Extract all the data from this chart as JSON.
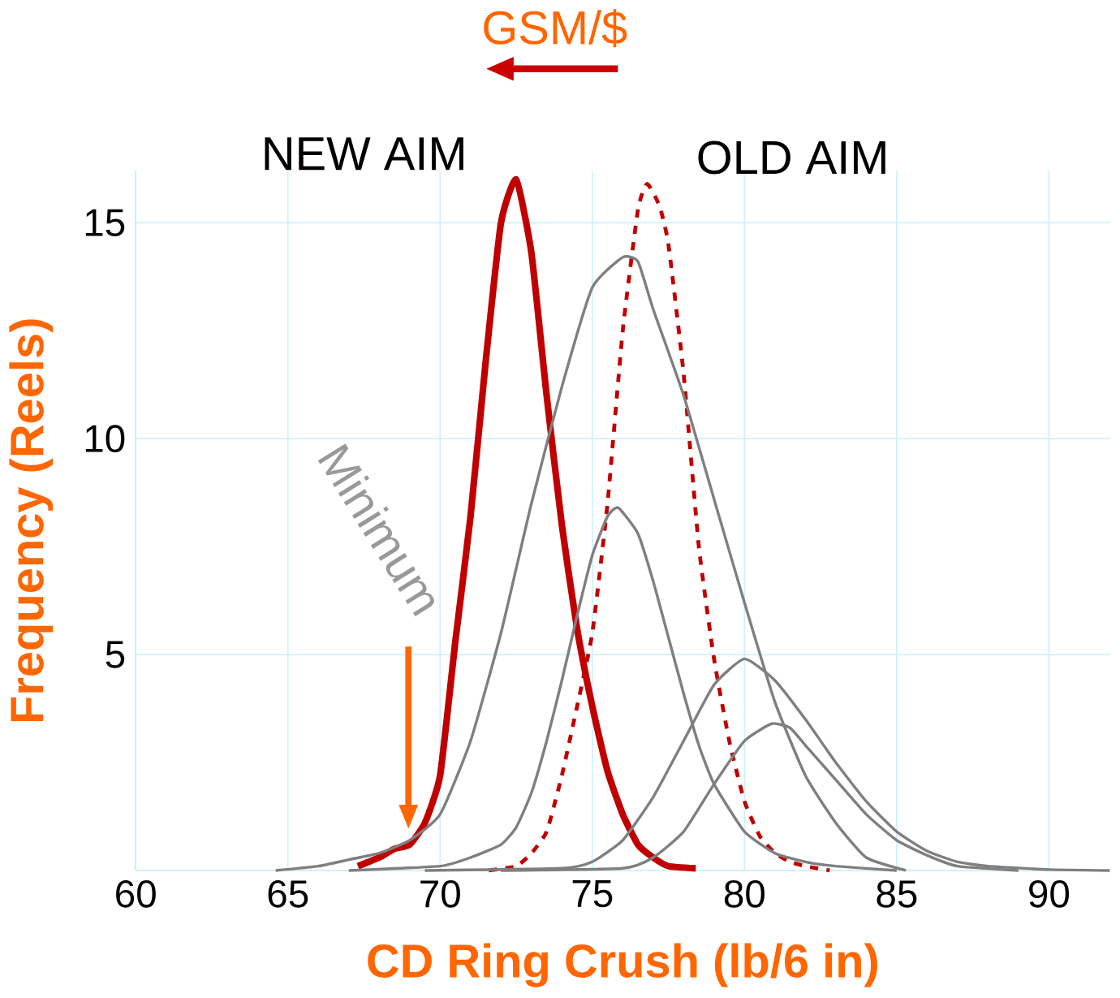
{
  "chart_data": {
    "type": "line",
    "xlabel": "CD Ring Crush (lb/6 in)",
    "ylabel": "Frequency (Reels)",
    "xlim": [
      60,
      92
    ],
    "ylim": [
      0,
      16.2
    ],
    "xticks": [
      60,
      65,
      70,
      75,
      80,
      85,
      90
    ],
    "yticks": [
      5,
      10,
      15
    ],
    "grid": true,
    "marker": "none",
    "annotations": [
      "GSM/$",
      "Minimum"
    ],
    "series": [
      {
        "name": "NEW AIM",
        "color": "#c00000",
        "line_style": "solid",
        "x": [
          67.3,
          68,
          68.5,
          69,
          69.5,
          70,
          70.5,
          71,
          71.5,
          72,
          72.5,
          73,
          73.5,
          74,
          74.5,
          75,
          75.5,
          76,
          76.5,
          77,
          77.5,
          78.4
        ],
        "values": [
          0.1,
          0.3,
          0.5,
          0.6,
          1.1,
          2.2,
          5.3,
          8.2,
          11.8,
          15,
          16,
          14.3,
          11,
          8,
          5.6,
          3.8,
          2.3,
          1.3,
          0.6,
          0.3,
          0.1,
          0.05
        ]
      },
      {
        "name": "OLD AIM",
        "color": "#c00000",
        "line_style": "dashed",
        "x": [
          71.6,
          72.5,
          73,
          73.5,
          74,
          74.5,
          75,
          75.5,
          76,
          76.5,
          76.8,
          77.2,
          77.5,
          78,
          78.5,
          79,
          79.5,
          80,
          80.5,
          81,
          81.5,
          82,
          82.8
        ],
        "values": [
          0,
          0.1,
          0.4,
          0.9,
          2.2,
          3.8,
          5.5,
          8.5,
          12.5,
          15.3,
          15.9,
          15.4,
          14.5,
          11.5,
          7.5,
          4.9,
          3,
          1.6,
          0.8,
          0.4,
          0.2,
          0.1,
          0
        ]
      },
      {
        "color": "#7f7f7f",
        "line_style": "solid",
        "x": [
          64.6,
          66,
          67,
          68,
          69,
          70,
          71,
          72,
          73,
          74,
          75,
          76,
          76.5,
          77,
          78,
          79,
          80,
          81,
          82,
          83,
          84,
          85.3
        ],
        "values": [
          0,
          0.1,
          0.25,
          0.4,
          0.7,
          1.3,
          3,
          5.5,
          8.5,
          11.2,
          13.5,
          14.2,
          14.1,
          13,
          11,
          8.6,
          6.2,
          3.9,
          2.2,
          1.1,
          0.3,
          0
        ]
      },
      {
        "color": "#7f7f7f",
        "line_style": "solid",
        "x": [
          67,
          70,
          71,
          72,
          72.5,
          73,
          73.5,
          74,
          74.5,
          75,
          75.5,
          75.85,
          76.5,
          77,
          77.5,
          78,
          78.5,
          79,
          80,
          81,
          82,
          83,
          85
        ],
        "values": [
          0,
          0.1,
          0.3,
          0.6,
          1,
          1.8,
          3,
          4.4,
          5.9,
          7.3,
          8.2,
          8.4,
          7.8,
          6.7,
          5.4,
          4.1,
          2.9,
          2,
          0.9,
          0.4,
          0.2,
          0.1,
          0
        ]
      },
      {
        "color": "#7f7f7f",
        "line_style": "solid",
        "x": [
          69.5,
          74,
          75,
          76,
          77,
          78,
          79,
          80,
          81,
          82,
          83,
          84,
          85,
          86,
          87,
          88,
          90,
          92
        ],
        "values": [
          0,
          0.05,
          0.2,
          0.7,
          1.7,
          3,
          4.3,
          4.9,
          4.4,
          3.5,
          2.5,
          1.6,
          0.9,
          0.45,
          0.2,
          0.1,
          0.02,
          0
        ]
      },
      {
        "color": "#7f7f7f",
        "line_style": "solid",
        "x": [
          72,
          76,
          77,
          78,
          79,
          80,
          80.9,
          81.5,
          82,
          83,
          84,
          85,
          86,
          87,
          89
        ],
        "values": [
          0,
          0.05,
          0.3,
          0.9,
          2,
          3,
          3.4,
          3.3,
          2.9,
          2.1,
          1.3,
          0.7,
          0.35,
          0.1,
          0
        ]
      }
    ]
  }
}
